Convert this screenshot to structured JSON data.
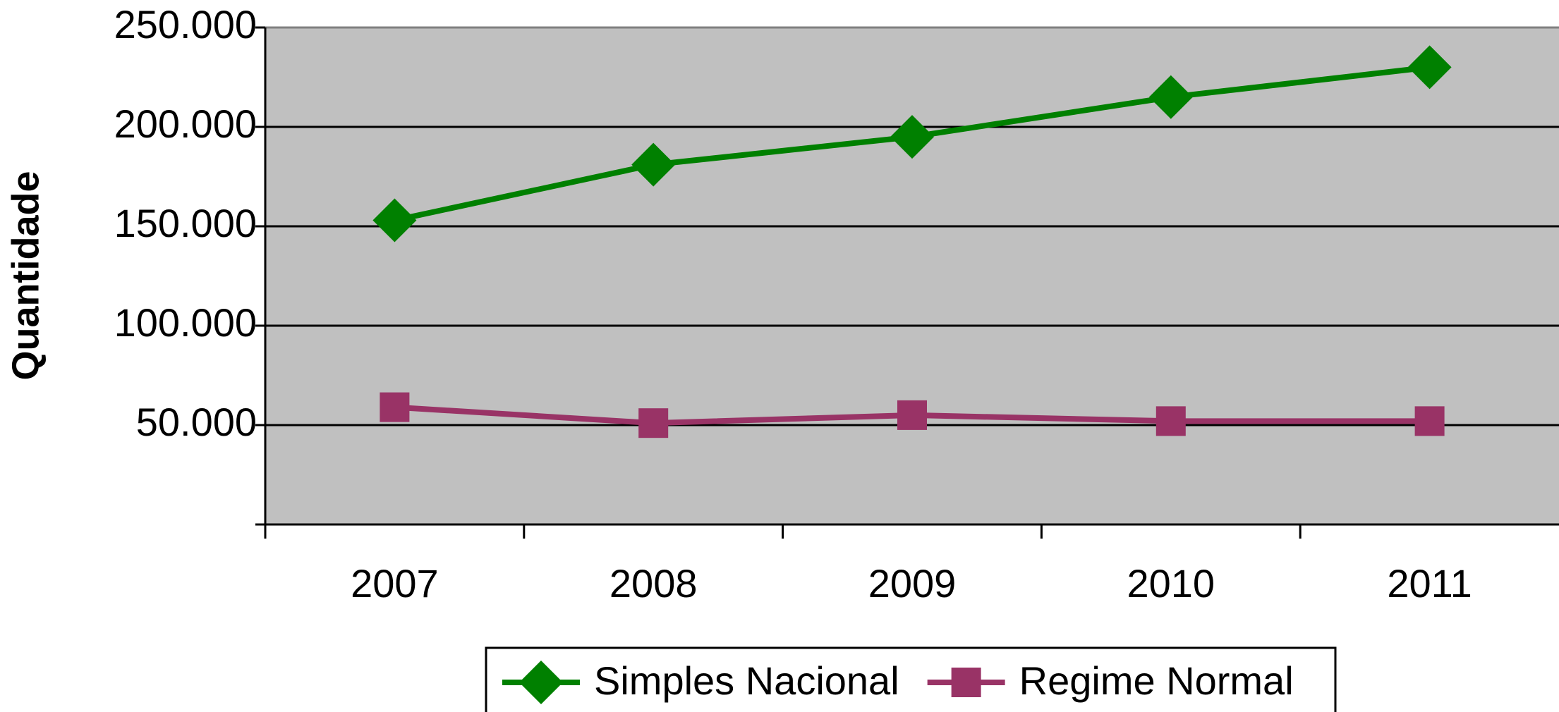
{
  "chart_data": {
    "type": "line",
    "y_label": "Quantidade",
    "categories": [
      "2007",
      "2008",
      "2009",
      "2010",
      "2011"
    ],
    "series": [
      {
        "name": "Simples Nacional",
        "color": "#008000",
        "marker": "diamond",
        "values": [
          153000,
          181000,
          195000,
          215000,
          230000
        ]
      },
      {
        "name": "Regime Normal",
        "color": "#993366",
        "marker": "square",
        "values": [
          59000,
          51000,
          55000,
          52000,
          52000
        ]
      }
    ],
    "ylim": [
      0,
      250000
    ],
    "yticks": [
      {
        "value": 50000,
        "label": "50.000"
      },
      {
        "value": 100000,
        "label": "100.000"
      },
      {
        "value": 150000,
        "label": "150.000"
      },
      {
        "value": 200000,
        "label": "200.000"
      },
      {
        "value": 250000,
        "label": "250.000"
      }
    ],
    "grid": true,
    "legend": "bottom"
  }
}
